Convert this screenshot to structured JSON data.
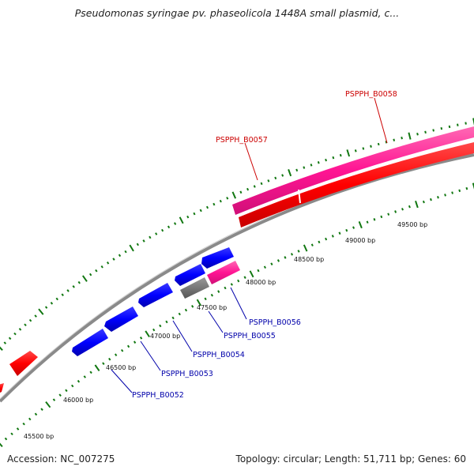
{
  "title": "Pseudomonas syringae pv. phaseolicola 1448A small plasmid, c...",
  "footer": {
    "accession": "Accession: NC_007275",
    "summary": "Topology: circular; Length: 51,711 bp; Genes: 60"
  },
  "colors": {
    "backbone": "#8a8a8a",
    "tick": "#117711",
    "forward_gene": "#ff0000",
    "forward_gene_alt": "#ff1493",
    "reverse_gene": "#0000ff",
    "reverse_gene_alt": "#ff1493",
    "other_gene": "#777777",
    "label_forward": "#cc0000",
    "label_reverse": "#0000aa"
  },
  "ruler": {
    "outer_labels": [],
    "inner_labels": [
      "45500 bp",
      "46000 bp",
      "46500 bp",
      "47000 bp",
      "47500 bp",
      "48000 bp",
      "48500 bp",
      "49000 bp",
      "49500 bp"
    ]
  },
  "genes": [
    {
      "label": "PSPPH_B0052",
      "strand": "reverse"
    },
    {
      "label": "PSPPH_B0053",
      "strand": "reverse"
    },
    {
      "label": "PSPPH_B0054",
      "strand": "reverse"
    },
    {
      "label": "PSPPH_B0055",
      "strand": "reverse"
    },
    {
      "label": "PSPPH_B0056",
      "strand": "reverse"
    },
    {
      "label": "PSPPH_B0057",
      "strand": "forward"
    },
    {
      "label": "PSPPH_B0058",
      "strand": "forward"
    }
  ]
}
